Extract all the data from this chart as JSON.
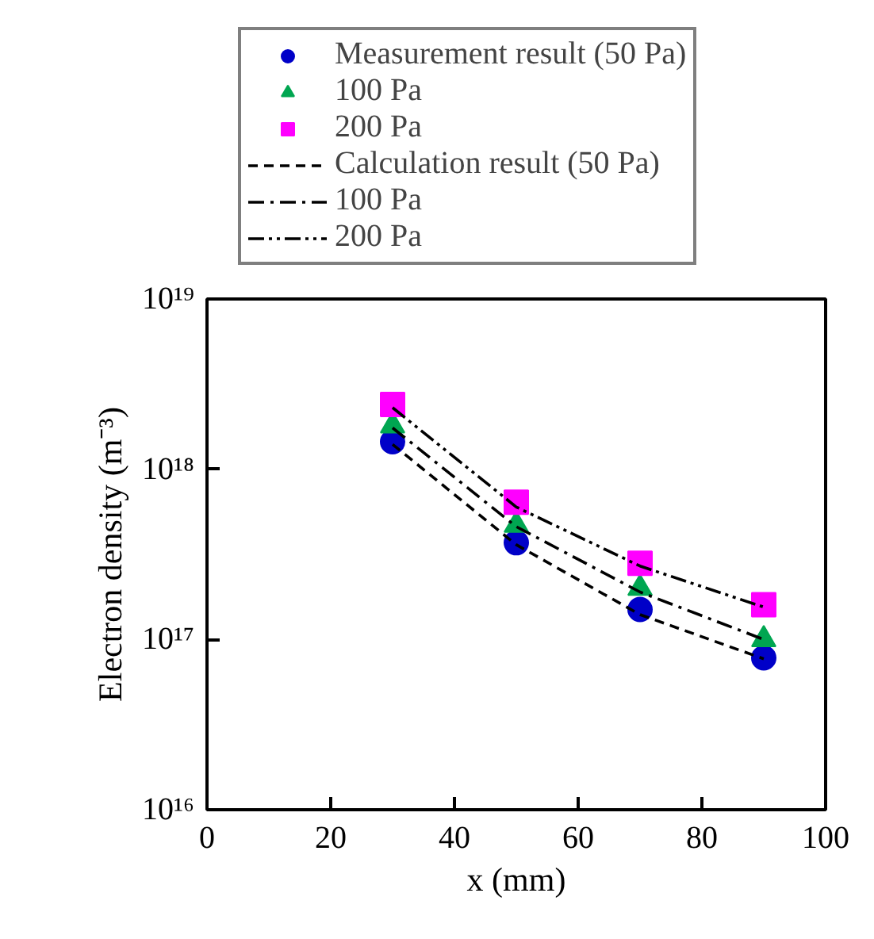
{
  "chart_data": {
    "type": "scatter",
    "xlabel": "x (mm)",
    "ylabel": "Electron density (m⁻³)",
    "log": "y",
    "legend": "top",
    "grid": false,
    "xlim": [
      0,
      100
    ],
    "xticks": [
      0,
      20,
      40,
      60,
      80,
      100
    ],
    "ylim": [
      1e+16,
      1e+19
    ],
    "yticks": [
      {
        "value": 1e+16,
        "label": "10¹⁶"
      },
      {
        "value": 1e+17,
        "label": "10¹⁷"
      },
      {
        "value": 1e+18,
        "label": "10¹⁸"
      },
      {
        "value": 1e+19,
        "label": "10¹⁹"
      }
    ],
    "x": [
      30,
      50,
      70,
      90
    ],
    "series": [
      {
        "name": "Measurement result (50 Pa)",
        "type": "scatter",
        "marker": "circle",
        "color": "#0000c8",
        "values": [
          1.45e+18,
          3.7e+17,
          1.5e+17,
          7.8e+16
        ]
      },
      {
        "name": "100 Pa",
        "type": "scatter",
        "marker": "triangle",
        "color": "#00a651",
        "values": [
          1.8e+18,
          4.7e+17,
          2e+17,
          1e+17
        ]
      },
      {
        "name": "200 Pa",
        "type": "scatter",
        "marker": "square",
        "color": "#ff00ff",
        "values": [
          2.4e+18,
          6.4e+17,
          2.8e+17,
          1.6e+17
        ]
      },
      {
        "name": "Calculation result (50 Pa)",
        "type": "line",
        "marker": "none",
        "line_style": "dashed",
        "color": "#000000",
        "values": [
          1.4e+18,
          3.6e+17,
          1.4e+17,
          7.7e+16
        ]
      },
      {
        "name": "100 Pa",
        "type": "line",
        "marker": "none",
        "line_style": "dashdot",
        "color": "#000000",
        "values": [
          1.75e+18,
          4.6e+17,
          1.9e+17,
          1e+17
        ]
      },
      {
        "name": "200 Pa",
        "type": "line",
        "marker": "none",
        "line_style": "dashdotdot",
        "color": "#000000",
        "values": [
          2.3e+18,
          6e+17,
          2.7e+17,
          1.55e+17
        ]
      }
    ]
  }
}
